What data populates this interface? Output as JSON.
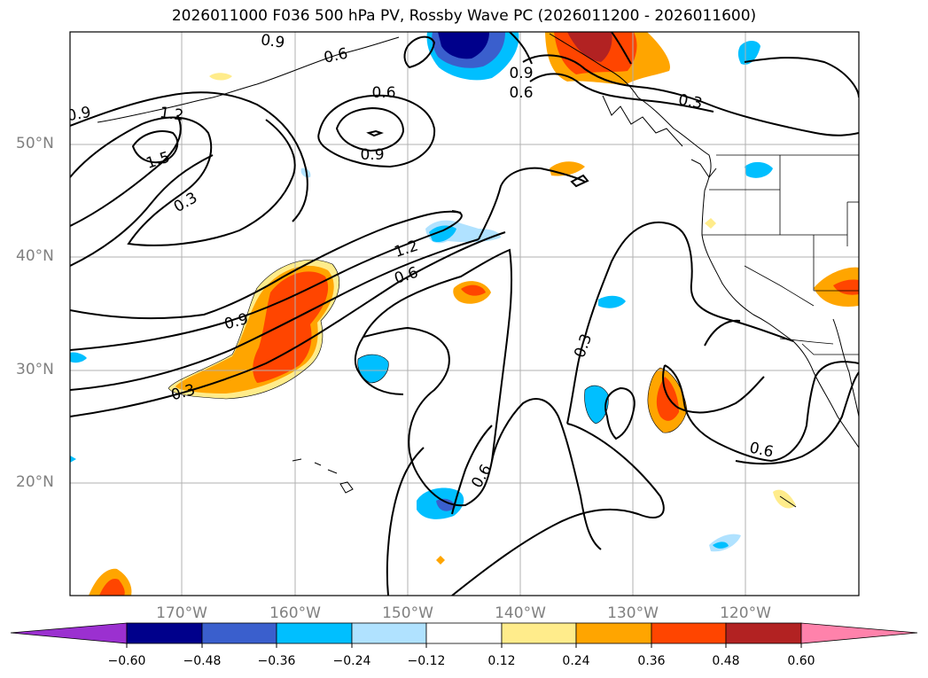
{
  "title": "2026011000 F036 500 hPa PV, Rossby Wave PC (2026011200 - 2026011600)",
  "lat_labels": [
    "50°N",
    "40°N",
    "30°N",
    "20°N"
  ],
  "lon_labels": [
    "170°W",
    "160°W",
    "150°W",
    "140°W",
    "130°W",
    "120°W"
  ],
  "contour_labels": [
    "0.9",
    "0.6",
    "0.9",
    "0.6",
    "0.3",
    "0.6",
    "1.2",
    "0.9",
    "0.9",
    "1.5",
    "0.3",
    "1.2",
    "0.6",
    "0.9",
    "0.3",
    "0.3",
    "0.6",
    "0.6"
  ],
  "colorbar": {
    "ticks": [
      "−0.60",
      "−0.48",
      "−0.36",
      "−0.24",
      "−0.12",
      "0.12",
      "0.24",
      "0.36",
      "0.48",
      "0.60"
    ],
    "colors": [
      "#9b30d0",
      "#00008b",
      "#3a5fcd",
      "#00bfff",
      "#b0e2ff",
      "#ffffff",
      "#ffec8b",
      "#ffa500",
      "#ff4500",
      "#b22222",
      "#ff82ab"
    ]
  }
}
